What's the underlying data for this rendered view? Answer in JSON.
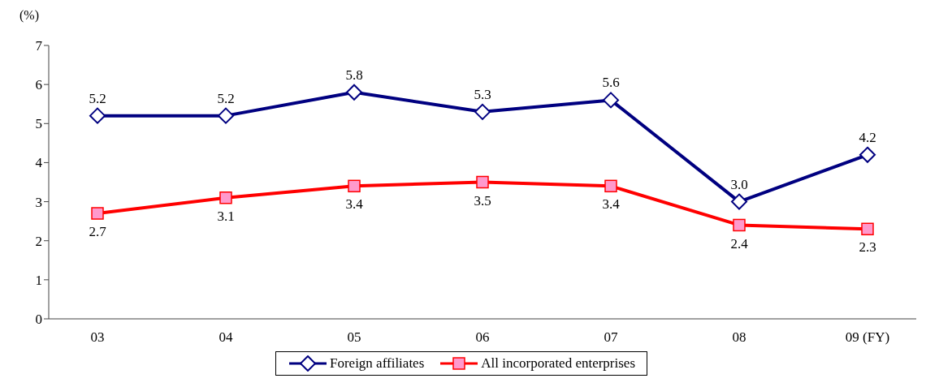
{
  "chart_data": {
    "type": "line",
    "ylabel": "(%)",
    "categories": [
      "03",
      "04",
      "05",
      "06",
      "07",
      "08",
      "09 (FY)"
    ],
    "series": [
      {
        "name": "Foreign affiliates",
        "color": "#000080",
        "marker": "diamond",
        "values": [
          5.2,
          5.2,
          5.8,
          5.3,
          5.6,
          3.0,
          4.2
        ],
        "value_labels": [
          "5.2",
          "5.2",
          "5.8",
          "5.3",
          "5.6",
          "3.0",
          "4.2"
        ]
      },
      {
        "name": "All incorporated enterprises",
        "color": "#ff0000",
        "marker": "square",
        "values": [
          2.7,
          3.1,
          3.4,
          3.5,
          3.4,
          2.4,
          2.3
        ],
        "value_labels": [
          "2.7",
          "3.1",
          "3.4",
          "3.5",
          "3.4",
          "2.4",
          "2.3"
        ]
      }
    ],
    "ylim": [
      0,
      7
    ],
    "yticks": [
      0,
      1,
      2,
      3,
      4,
      5,
      6,
      7
    ],
    "legend": "bottom"
  }
}
